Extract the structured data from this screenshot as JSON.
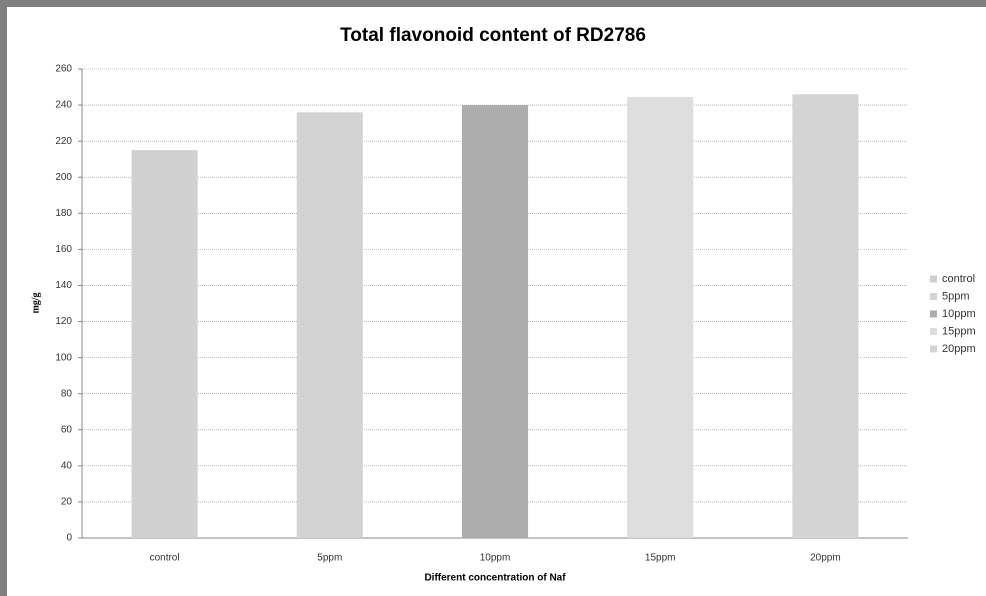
{
  "chart_data": {
    "type": "bar",
    "title": "Total flavonoid content of RD2786",
    "x_label": "Different concentration of Naf",
    "y_label": "mg/g",
    "categories": [
      "control",
      "5ppm",
      "10ppm",
      "15ppm",
      "20ppm"
    ],
    "values": [
      215,
      236,
      240,
      244.5,
      246
    ],
    "colors": [
      "#d0d0d0",
      "#d3d3d3",
      "#adadad",
      "#dedede",
      "#d4d4d4"
    ],
    "ylim": [
      0,
      260
    ],
    "yticks": [
      0,
      20,
      40,
      60,
      80,
      100,
      120,
      140,
      160,
      180,
      200,
      220,
      240,
      260
    ],
    "grid": true,
    "legend": "right"
  }
}
